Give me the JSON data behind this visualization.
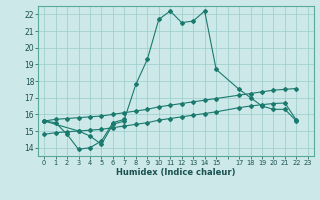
{
  "xlabel": "Humidex (Indice chaleur)",
  "bg_color": "#cce8e8",
  "grid_color": "#99cccc",
  "line_color": "#1a7a6e",
  "xlim": [
    -0.5,
    23.5
  ],
  "ylim": [
    13.5,
    22.5
  ],
  "xtick_labels": [
    "0",
    "1",
    "2",
    "3",
    "4",
    "5",
    "6",
    "7",
    "8",
    "9",
    "10",
    "11",
    "12",
    "13",
    "14",
    "15",
    "",
    "17",
    "18",
    "19",
    "20",
    "21",
    "22",
    "23"
  ],
  "xtick_vals": [
    0,
    1,
    2,
    3,
    4,
    5,
    6,
    7,
    8,
    9,
    10,
    11,
    12,
    13,
    14,
    15,
    16,
    17,
    18,
    19,
    20,
    21,
    22,
    23
  ],
  "ytick_vals": [
    14,
    15,
    16,
    17,
    18,
    19,
    20,
    21,
    22
  ],
  "curve_main_x": [
    0,
    1,
    2,
    3,
    4,
    5,
    6,
    7,
    8,
    9,
    10,
    11,
    12,
    13,
    14,
    15,
    17,
    18,
    19,
    20,
    21,
    22
  ],
  "curve_main_y": [
    15.6,
    15.5,
    14.8,
    13.9,
    14.0,
    14.4,
    15.5,
    15.7,
    17.8,
    19.3,
    21.7,
    22.2,
    21.5,
    21.6,
    22.2,
    18.7,
    17.5,
    17.0,
    16.5,
    16.3,
    16.3,
    15.6
  ],
  "curve_sub_x": [
    0,
    3,
    4,
    5,
    6,
    7
  ],
  "curve_sub_y": [
    15.6,
    15.0,
    14.7,
    14.2,
    15.4,
    15.6
  ],
  "curve_upper_x": [
    0,
    1,
    2,
    3,
    4,
    5,
    6,
    7,
    8,
    9,
    10,
    11,
    12,
    13,
    14,
    15,
    17,
    18,
    19,
    20,
    21,
    22
  ],
  "curve_upper_y": [
    15.6,
    15.7,
    15.75,
    15.8,
    15.85,
    15.9,
    16.0,
    16.1,
    16.2,
    16.3,
    16.45,
    16.55,
    16.65,
    16.75,
    16.85,
    16.95,
    17.15,
    17.25,
    17.35,
    17.45,
    17.5,
    17.55
  ],
  "curve_lower_x": [
    0,
    1,
    2,
    3,
    4,
    5,
    6,
    7,
    8,
    9,
    10,
    11,
    12,
    13,
    14,
    15,
    17,
    18,
    19,
    20,
    21,
    22
  ],
  "curve_lower_y": [
    14.8,
    14.9,
    14.95,
    15.0,
    15.05,
    15.1,
    15.2,
    15.3,
    15.4,
    15.5,
    15.65,
    15.75,
    15.85,
    15.95,
    16.05,
    16.15,
    16.4,
    16.5,
    16.58,
    16.65,
    16.68,
    15.65
  ]
}
